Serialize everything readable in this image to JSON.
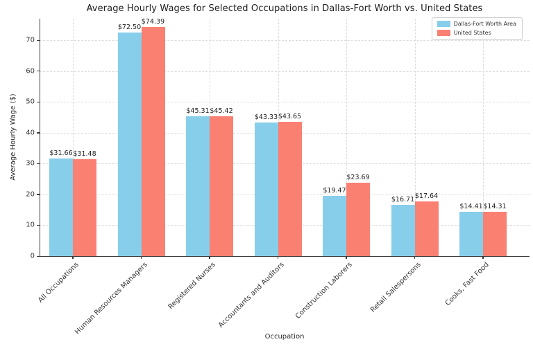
{
  "chart_data": {
    "type": "bar",
    "title": "Average Hourly Wages for Selected Occupations in Dallas-Fort Worth vs. United States",
    "xlabel": "Occupation",
    "ylabel": "Average Hourly Wage ($)",
    "categories": [
      "All Occupations",
      "Human Resources Managers",
      "Registered Nurses",
      "Accountants and Auditors",
      "Construction Laborers",
      "Retail Salespersons",
      "Cooks, Fast Food"
    ],
    "series": [
      {
        "name": "Dallas-Fort Worth Area",
        "color": "#87CEEB",
        "values": [
          31.66,
          72.5,
          45.31,
          43.33,
          19.47,
          16.71,
          14.41
        ],
        "value_labels": [
          "$31.66",
          "$72.50",
          "$45.31",
          "$43.33",
          "$19.47",
          "$16.71",
          "$14.41"
        ]
      },
      {
        "name": "United States",
        "color": "#FA8072",
        "values": [
          31.48,
          74.39,
          45.42,
          43.65,
          23.69,
          17.64,
          14.31
        ],
        "value_labels": [
          "$31.48",
          "$74.39",
          "$45.42",
          "$43.65",
          "$23.69",
          "$17.64",
          "$14.31"
        ]
      }
    ],
    "yticks": [
      0,
      10,
      20,
      30,
      40,
      50,
      60,
      70
    ],
    "ylim": [
      0,
      77
    ],
    "grid": true,
    "grid_style": "dashed",
    "legend_position": "upper right"
  }
}
